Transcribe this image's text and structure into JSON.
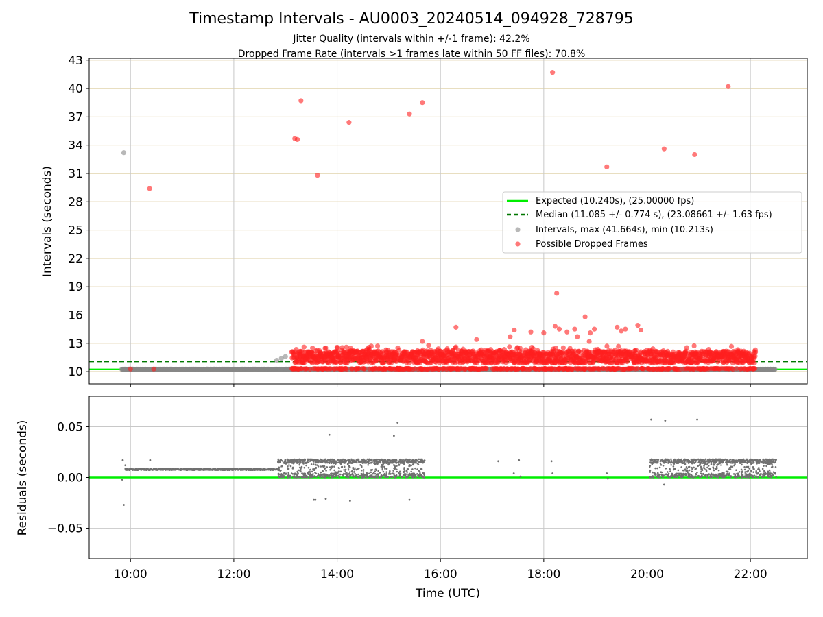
{
  "title": "Timestamp Intervals - AU0003_20240514_094928_728795",
  "subtitle_jitter": "Jitter Quality (intervals within +/-1 frame): 42.2%",
  "subtitle_dropped": "Dropped Frame Rate (intervals >1 frames late within 50 FF files): 70.8%",
  "colors": {
    "expected": "#00ee00",
    "median": "#007700",
    "intervals": "#888888",
    "dropped": "#ff2020",
    "hline_grid": "#d2be82",
    "grid": "#c8c8c8",
    "residuals": "#707070"
  },
  "chart_data": [
    {
      "type": "scatter",
      "xlabel": "",
      "ylabel": "Intervals (seconds)",
      "xlim_hours": [
        9.2,
        23.1
      ],
      "ylim": [
        8.7,
        43.2
      ],
      "yticks": [
        10,
        13,
        16,
        19,
        22,
        25,
        28,
        31,
        34,
        37,
        40,
        43
      ],
      "grid": true,
      "legend_position": "center-right",
      "reference_lines": [
        {
          "name": "Expected (10.240s), (25.00000 fps)",
          "y": 10.24,
          "style": "solid"
        },
        {
          "name": "Median (11.085 +/- 0.774 s), (23.08661 +/- 1.63 fps)",
          "y": 11.085,
          "style": "dashed"
        }
      ],
      "series": [
        {
          "name": "Intervals, max (41.664s), min (10.213s)",
          "points": [
            [
              9.87,
              33.2
            ],
            [
              13.0,
              11.6
            ],
            [
              12.83,
              11.2
            ],
            [
              12.92,
              11.4
            ],
            [
              12.9,
              10.25
            ]
          ],
          "dense_band": {
            "x_start": 9.83,
            "x_end": 22.48,
            "y": 10.25
          }
        },
        {
          "name": "Possible Dropped Frames",
          "points": [
            [
              10.37,
              29.4
            ],
            [
              13.18,
              34.7
            ],
            [
              13.23,
              34.6
            ],
            [
              13.3,
              38.7
            ],
            [
              13.62,
              30.8
            ],
            [
              14.23,
              36.4
            ],
            [
              15.4,
              37.3
            ],
            [
              15.65,
              38.5
            ],
            [
              18.17,
              41.7
            ],
            [
              18.25,
              18.3
            ],
            [
              18.8,
              15.8
            ],
            [
              19.22,
              31.7
            ],
            [
              20.33,
              33.6
            ],
            [
              20.92,
              33.0
            ],
            [
              21.57,
              40.2
            ],
            [
              16.3,
              14.7
            ],
            [
              17.43,
              14.4
            ],
            [
              17.35,
              13.7
            ],
            [
              17.75,
              14.2
            ],
            [
              18.0,
              14.1
            ],
            [
              18.22,
              14.8
            ],
            [
              18.3,
              14.5
            ],
            [
              18.45,
              14.2
            ],
            [
              18.6,
              14.5
            ],
            [
              18.98,
              14.5
            ],
            [
              19.42,
              14.7
            ],
            [
              19.5,
              14.3
            ],
            [
              19.58,
              14.5
            ],
            [
              19.82,
              14.9
            ],
            [
              19.88,
              14.4
            ],
            [
              15.65,
              13.2
            ],
            [
              16.7,
              13.4
            ],
            [
              18.65,
              13.7
            ],
            [
              18.9,
              14.1
            ],
            [
              18.88,
              13.2
            ],
            [
              10.0,
              10.28
            ],
            [
              10.45,
              10.28
            ],
            [
              15.38,
              10.28
            ],
            [
              17.1,
              10.28
            ],
            [
              17.35,
              10.28
            ],
            [
              17.5,
              10.28
            ],
            [
              18.15,
              10.28
            ],
            [
              19.22,
              10.28
            ]
          ],
          "dense_region": {
            "x_start": 13.12,
            "x_end": 22.1,
            "y_range": [
              10.25,
              12.9
            ]
          }
        }
      ]
    },
    {
      "type": "scatter",
      "xlabel": "Time (UTC)",
      "ylabel": "Residuals (seconds)",
      "xlim_hours": [
        9.2,
        23.1
      ],
      "ylim": [
        -0.08,
        0.08
      ],
      "yticks": [
        -0.05,
        0.0,
        0.05
      ],
      "ytick_labels": [
        "−0.05",
        "0.00",
        "0.05"
      ],
      "xticks_hours": [
        10,
        12,
        14,
        16,
        18,
        20,
        22
      ],
      "xtick_labels": [
        "10:00",
        "12:00",
        "14:00",
        "16:00",
        "18:00",
        "20:00",
        "22:00"
      ],
      "grid": true,
      "reference_lines": [
        {
          "y": 0.0
        }
      ],
      "series": [
        {
          "name": "",
          "points": [
            [
              9.85,
              0.017
            ],
            [
              9.87,
              -0.027
            ],
            [
              9.84,
              -0.002
            ],
            [
              9.9,
              0.012
            ],
            [
              10.38,
              0.017
            ],
            [
              13.58,
              -0.022
            ],
            [
              13.55,
              -0.022
            ],
            [
              13.78,
              -0.021
            ],
            [
              13.85,
              0.042
            ],
            [
              14.25,
              -0.023
            ],
            [
              15.1,
              0.041
            ],
            [
              15.17,
              0.054
            ],
            [
              15.4,
              -0.022
            ],
            [
              17.12,
              0.016
            ],
            [
              17.42,
              0.004
            ],
            [
              17.52,
              0.017
            ],
            [
              17.55,
              0.001
            ],
            [
              18.15,
              0.016
            ],
            [
              18.17,
              0.004
            ],
            [
              19.22,
              0.004
            ],
            [
              19.24,
              -0.001
            ],
            [
              20.08,
              0.057
            ],
            [
              20.33,
              -0.007
            ],
            [
              20.35,
              0.056
            ],
            [
              20.97,
              0.057
            ]
          ],
          "dense_band": {
            "x_start": 9.9,
            "x_end": 12.85,
            "y": 0.008
          },
          "clusters": [
            {
              "x_start": 12.85,
              "x_end": 13.9,
              "y_range": [
                0.0,
                0.018
              ]
            },
            {
              "x_start": 13.9,
              "x_end": 15.7,
              "y_range": [
                0.0,
                0.018
              ]
            },
            {
              "x_start": 20.05,
              "x_end": 21.3,
              "y_range": [
                0.0,
                0.018
              ]
            },
            {
              "x_start": 21.3,
              "x_end": 22.5,
              "y_range": [
                0.0,
                0.018
              ]
            }
          ]
        }
      ]
    }
  ]
}
